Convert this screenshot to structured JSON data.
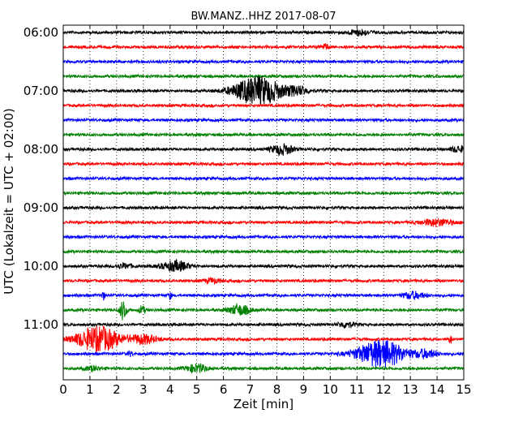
{
  "chart_data": {
    "type": "line",
    "title": "BW.MANZ..HHZ 2017-08-07",
    "xlabel": "Zeit  [min]",
    "ylabel": "UTC (Lokalzeit = UTC + 02:00)",
    "xlim": [
      0,
      15
    ],
    "x_ticks": [
      "0",
      "1",
      "2",
      "3",
      "4",
      "5",
      "6",
      "7",
      "8",
      "9",
      "10",
      "11",
      "12",
      "13",
      "14",
      "15"
    ],
    "hour_labels": [
      "06:00",
      "07:00",
      "08:00",
      "09:00",
      "10:00",
      "11:00"
    ],
    "trace_colors": [
      "#000000",
      "#ff0000",
      "#0000ff",
      "#008000"
    ],
    "grid": "vertical-dotted",
    "trace_count": 24,
    "events": [
      {
        "trace": 0,
        "t": 11.1,
        "amp": 0.25,
        "dur": 0.4
      },
      {
        "trace": 1,
        "t": 9.8,
        "amp": 0.25,
        "dur": 0.15
      },
      {
        "trace": 4,
        "t": 7.3,
        "amp": 1.25,
        "dur": 0.9
      },
      {
        "trace": 4,
        "t": 8.8,
        "amp": 0.35,
        "dur": 0.4
      },
      {
        "trace": 8,
        "t": 8.2,
        "amp": 0.45,
        "dur": 0.4
      },
      {
        "trace": 8,
        "t": 14.8,
        "amp": 0.25,
        "dur": 0.3
      },
      {
        "trace": 13,
        "t": 14.0,
        "amp": 0.3,
        "dur": 0.6
      },
      {
        "trace": 16,
        "t": 4.2,
        "amp": 0.45,
        "dur": 0.5
      },
      {
        "trace": 16,
        "t": 2.3,
        "amp": 0.2,
        "dur": 0.3
      },
      {
        "trace": 17,
        "t": 5.6,
        "amp": 0.2,
        "dur": 0.3
      },
      {
        "trace": 18,
        "t": 1.5,
        "amp": 0.35,
        "dur": 0.06
      },
      {
        "trace": 18,
        "t": 4.0,
        "amp": 0.3,
        "dur": 0.06
      },
      {
        "trace": 18,
        "t": 13.1,
        "amp": 0.3,
        "dur": 0.4
      },
      {
        "trace": 19,
        "t": 2.25,
        "amp": 0.9,
        "dur": 0.12
      },
      {
        "trace": 19,
        "t": 2.95,
        "amp": 0.35,
        "dur": 0.12
      },
      {
        "trace": 19,
        "t": 6.6,
        "amp": 0.45,
        "dur": 0.4
      },
      {
        "trace": 20,
        "t": 10.6,
        "amp": 0.25,
        "dur": 0.3
      },
      {
        "trace": 23,
        "t": 5.0,
        "amp": 0.35,
        "dur": 0.4
      },
      {
        "trace": 23,
        "t": 1.1,
        "amp": 0.2,
        "dur": 0.3
      },
      {
        "trace": 22,
        "t": 2.5,
        "amp": 0.2,
        "dur": 0.1
      },
      {
        "trace": 22,
        "t": 11.9,
        "amp": 1.2,
        "dur": 0.9
      },
      {
        "trace": 22,
        "t": 13.6,
        "amp": 0.35,
        "dur": 0.4
      },
      {
        "trace": 21,
        "t": 1.3,
        "amp": 1.1,
        "dur": 0.8
      },
      {
        "trace": 21,
        "t": 3.0,
        "amp": 0.4,
        "dur": 0.5
      },
      {
        "trace": 21,
        "t": 14.5,
        "amp": 0.35,
        "dur": 0.06
      }
    ]
  }
}
